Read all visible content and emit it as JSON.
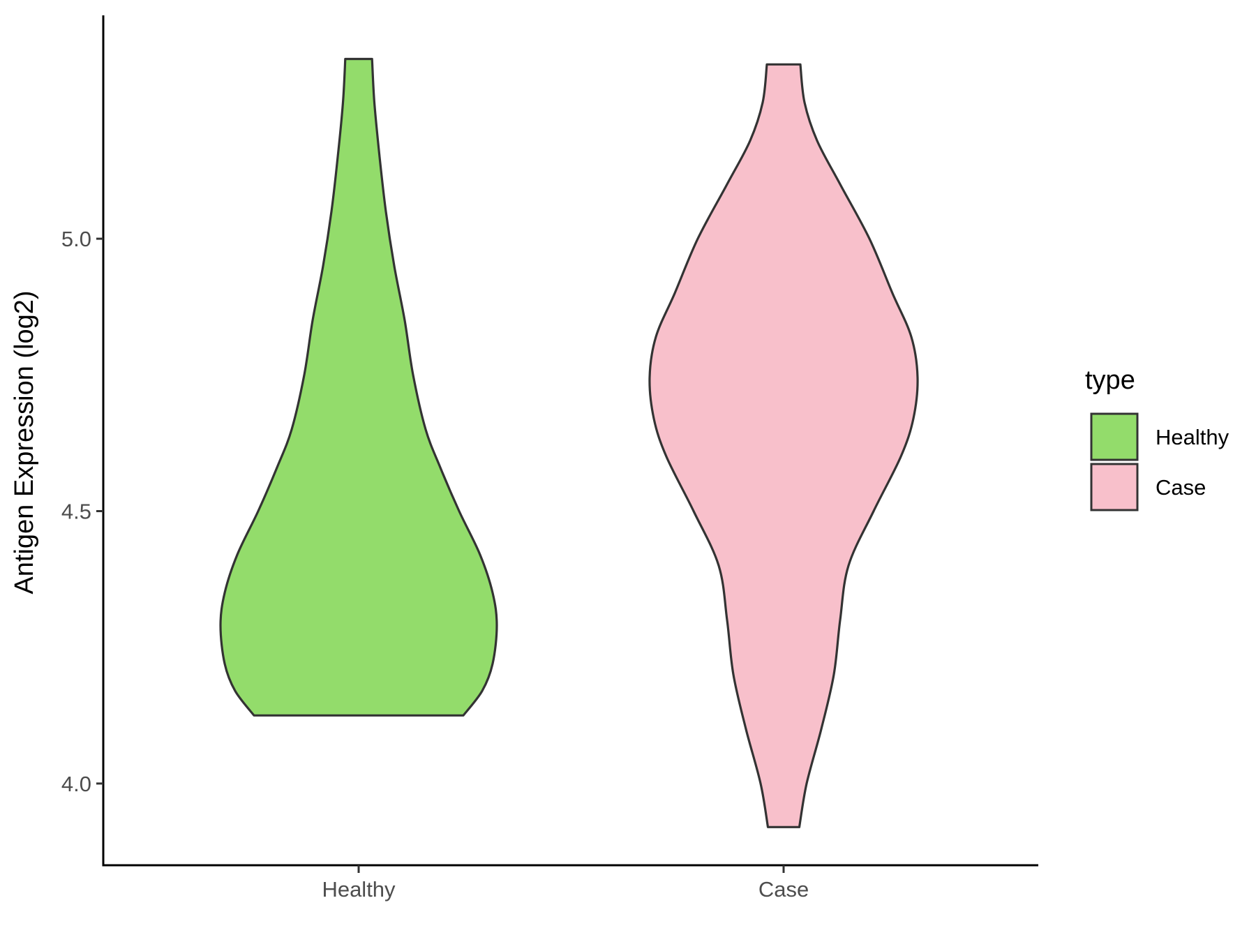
{
  "chart_data": {
    "type": "violin",
    "title": "",
    "xlabel": "",
    "ylabel": "Antigen Expression (log2)",
    "ylim": [
      3.85,
      5.41
    ],
    "y_ticks": [
      "4.0",
      "4.5",
      "5.0"
    ],
    "categories": [
      "Healthy",
      "Case"
    ],
    "grid": false,
    "legend": {
      "title": "type",
      "position": "right",
      "entries": [
        {
          "label": "Healthy",
          "color": "#93dc6b"
        },
        {
          "label": "Case",
          "color": "#f8c0cb"
        }
      ]
    },
    "series": [
      {
        "name": "Healthy",
        "color": "#93dc6b",
        "min": 4.125,
        "max": 5.33,
        "density_profile": [
          [
            4.125,
            0.5
          ],
          [
            4.17,
            0.59
          ],
          [
            4.22,
            0.64
          ],
          [
            4.29,
            0.66
          ],
          [
            4.35,
            0.64
          ],
          [
            4.42,
            0.58
          ],
          [
            4.5,
            0.48
          ],
          [
            4.58,
            0.39
          ],
          [
            4.65,
            0.32
          ],
          [
            4.75,
            0.26
          ],
          [
            4.85,
            0.22
          ],
          [
            4.95,
            0.17
          ],
          [
            5.05,
            0.13
          ],
          [
            5.15,
            0.1
          ],
          [
            5.25,
            0.075
          ],
          [
            5.33,
            0.064
          ]
        ]
      },
      {
        "name": "Case",
        "color": "#f8c0cb",
        "min": 3.92,
        "max": 5.32,
        "density_profile": [
          [
            3.92,
            0.075
          ],
          [
            4.0,
            0.11
          ],
          [
            4.1,
            0.18
          ],
          [
            4.2,
            0.24
          ],
          [
            4.3,
            0.27
          ],
          [
            4.4,
            0.31
          ],
          [
            4.5,
            0.43
          ],
          [
            4.6,
            0.56
          ],
          [
            4.67,
            0.62
          ],
          [
            4.745,
            0.64
          ],
          [
            4.82,
            0.61
          ],
          [
            4.9,
            0.52
          ],
          [
            5.0,
            0.41
          ],
          [
            5.1,
            0.27
          ],
          [
            5.18,
            0.16
          ],
          [
            5.25,
            0.1
          ],
          [
            5.32,
            0.08
          ]
        ]
      }
    ]
  }
}
